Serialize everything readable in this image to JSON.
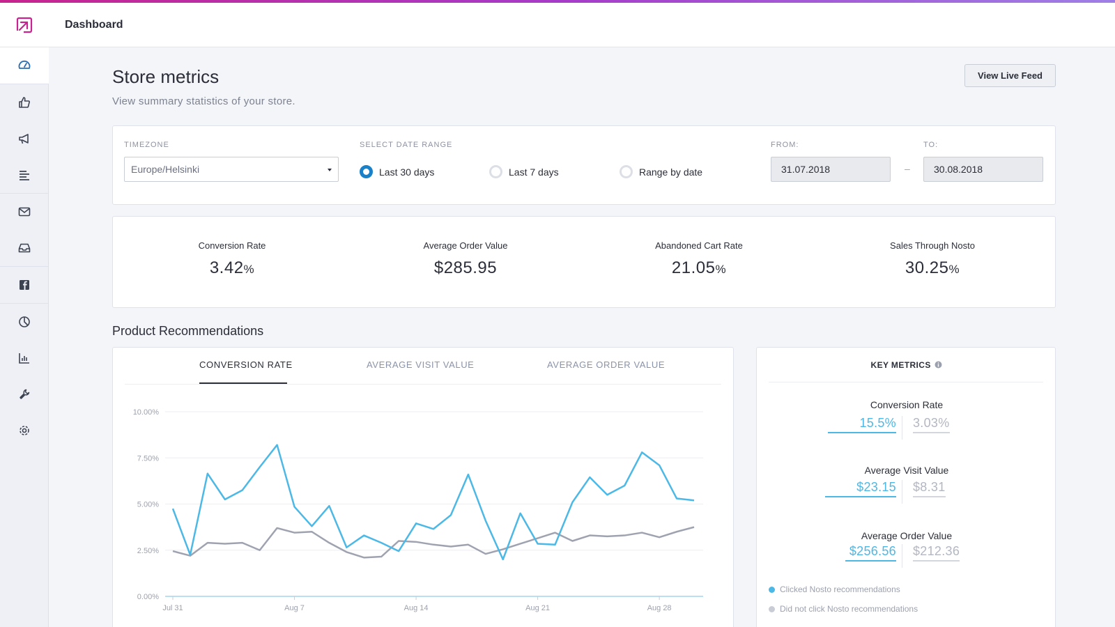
{
  "colors": {
    "accent": "#1a80c8",
    "clicked": "#4cb8e6",
    "not_clicked": "#9fa3b0",
    "brand": "#c8248f"
  },
  "header": {
    "title": "Dashboard"
  },
  "sidebar": {
    "icons": [
      "gauge-icon",
      "thumbs-up-icon",
      "megaphone-icon",
      "list-icon",
      "mail-icon",
      "inbox-icon",
      "facebook-icon",
      "pie-chart-icon",
      "bar-chart-icon",
      "wrench-icon",
      "gear-icon"
    ]
  },
  "page": {
    "title": "Store metrics",
    "subtitle": "View summary statistics of your store.",
    "live_feed_button": "View Live Feed"
  },
  "filters": {
    "timezone_label": "TIMEZONE",
    "timezone_value": "Europe/Helsinki",
    "date_range_label": "SELECT DATE RANGE",
    "options": [
      {
        "label": "Last 30 days",
        "selected": true
      },
      {
        "label": "Last 7 days",
        "selected": false
      },
      {
        "label": "Range by date",
        "selected": false
      }
    ],
    "from_label": "FROM:",
    "from_value": "31.07.2018",
    "to_label": "TO:",
    "to_value": "30.08.2018",
    "separator": "–"
  },
  "stats": [
    {
      "label": "Conversion Rate",
      "value": "3.42",
      "unit": "%"
    },
    {
      "label": "Average Order Value",
      "value": "$285.95",
      "unit": ""
    },
    {
      "label": "Abandoned Cart Rate",
      "value": "21.05",
      "unit": "%"
    },
    {
      "label": "Sales Through Nosto",
      "value": "30.25",
      "unit": "%"
    }
  ],
  "recommendations": {
    "title": "Product Recommendations",
    "tabs": [
      "CONVERSION RATE",
      "AVERAGE VISIT VALUE",
      "AVERAGE ORDER VALUE"
    ],
    "active_tab": 0
  },
  "chart_data": {
    "type": "line",
    "title": "Conversion Rate",
    "ylim": [
      0,
      10
    ],
    "yticks": [
      "10.00%",
      "7.50%",
      "5.00%",
      "2.50%",
      "0.00%"
    ],
    "xticks": [
      "Jul 31",
      "Aug 7",
      "Aug 14",
      "Aug 21",
      "Aug 28"
    ],
    "series": [
      {
        "name": "Clicked Nosto recommendations",
        "values": [
          4.75,
          2.25,
          6.65,
          5.25,
          5.75,
          7.0,
          8.2,
          4.85,
          3.8,
          4.9,
          2.65,
          3.3,
          2.9,
          2.45,
          3.95,
          3.65,
          4.4,
          6.6,
          4.1,
          2.0,
          4.5,
          2.85,
          2.8,
          5.1,
          6.45,
          5.5,
          6.0,
          7.8,
          7.1,
          5.3,
          5.2
        ]
      },
      {
        "name": "Did not click Nosto recommendations",
        "values": [
          2.45,
          2.2,
          2.9,
          2.85,
          2.9,
          2.5,
          3.7,
          3.45,
          3.5,
          2.9,
          2.4,
          2.1,
          2.15,
          3.0,
          2.95,
          2.8,
          2.7,
          2.8,
          2.3,
          2.55,
          2.85,
          3.15,
          3.45,
          3.0,
          3.3,
          3.25,
          3.3,
          3.45,
          3.2,
          3.5,
          3.75
        ]
      }
    ]
  },
  "key_metrics": {
    "title": "KEY METRICS",
    "items": [
      {
        "label": "Conversion Rate",
        "clicked": "15.5%",
        "not_clicked": "3.03%"
      },
      {
        "label": "Average Visit Value",
        "clicked": "$23.15",
        "not_clicked": "$8.31"
      },
      {
        "label": "Average Order Value",
        "clicked": "$256.56",
        "not_clicked": "$212.36"
      }
    ],
    "legend": [
      "Clicked Nosto recommendations",
      "Did not click Nosto recommendations"
    ]
  }
}
